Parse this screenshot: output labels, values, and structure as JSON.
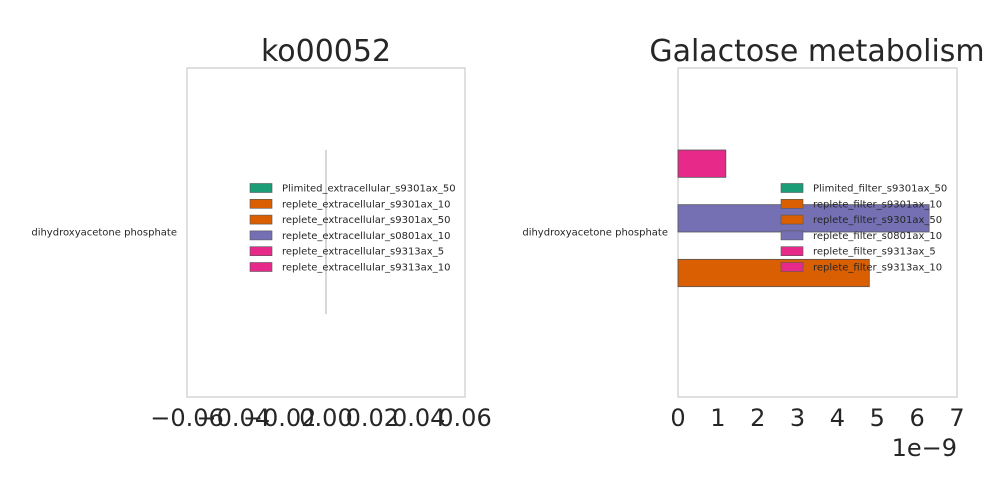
{
  "chart_data": [
    {
      "type": "bar",
      "orientation": "horizontal",
      "title": "ko00052",
      "categories": [
        "dihydroxyacetone phosphate"
      ],
      "xlim": [
        -0.06,
        0.06
      ],
      "xticks": [
        "−0.06",
        "−0.04",
        "−0.02",
        "0.00",
        "0.02",
        "0.04",
        "0.06"
      ],
      "xtick_values": [
        -0.06,
        -0.04,
        -0.02,
        0.0,
        0.02,
        0.04,
        0.06
      ],
      "x_offset_label": "",
      "grid": false,
      "legend_position": "center-right",
      "series": [
        {
          "name": "Plimited_extracellular_s9301ax_50",
          "values": [
            0
          ],
          "color": "#1b9e77"
        },
        {
          "name": "replete_extracellular_s9301ax_10",
          "values": [
            0
          ],
          "color": "#d95f02"
        },
        {
          "name": "replete_extracellular_s9301ax_50",
          "values": [
            0
          ],
          "color": "#d95f02"
        },
        {
          "name": "replete_extracellular_s0801ax_10",
          "values": [
            0
          ],
          "color": "#7570b3"
        },
        {
          "name": "replete_extracellular_s9313ax_5",
          "values": [
            0
          ],
          "color": "#e7298a"
        },
        {
          "name": "replete_extracellular_s9313ax_10",
          "values": [
            0
          ],
          "color": "#e7298a"
        }
      ]
    },
    {
      "type": "bar",
      "orientation": "horizontal",
      "title": "Galactose metabolism",
      "categories": [
        "dihydroxyacetone phosphate"
      ],
      "xlim": [
        0,
        7e-09
      ],
      "xticks": [
        "0",
        "1",
        "2",
        "3",
        "4",
        "5",
        "6",
        "7"
      ],
      "xtick_values": [
        0,
        1e-09,
        2e-09,
        3e-09,
        4e-09,
        5e-09,
        6e-09,
        7e-09
      ],
      "x_offset_label": "1e−9",
      "grid": false,
      "legend_position": "center-right",
      "series": [
        {
          "name": "Plimited_filter_s9301ax_50",
          "values": [
            0
          ],
          "color": "#1b9e77"
        },
        {
          "name": "replete_filter_s9301ax_10",
          "values": [
            4.8e-09
          ],
          "color": "#d95f02"
        },
        {
          "name": "replete_filter_s9301ax_50",
          "values": [
            0
          ],
          "color": "#d95f02"
        },
        {
          "name": "replete_filter_s0801ax_10",
          "values": [
            6.3e-09
          ],
          "color": "#7570b3"
        },
        {
          "name": "replete_filter_s9313ax_5",
          "values": [
            0
          ],
          "color": "#e7298a"
        },
        {
          "name": "replete_filter_s9313ax_10",
          "values": [
            1.2e-09
          ],
          "color": "#e7298a"
        }
      ]
    }
  ]
}
